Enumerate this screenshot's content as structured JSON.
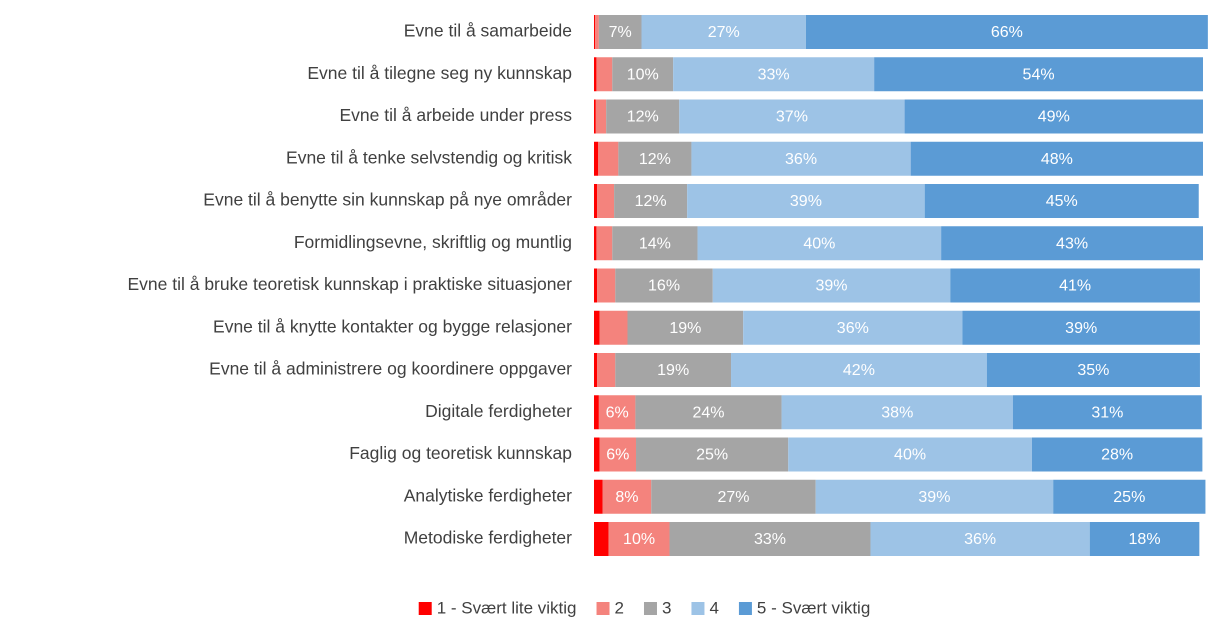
{
  "chart_data": {
    "type": "stacked-bar-horizontal",
    "categories": [
      "Evne til å samarbeide",
      "Evne til å tilegne seg ny kunnskap",
      "Evne til å arbeide under press",
      "Evne til å tenke selvstendig og kritisk",
      "Evne til å benytte sin kunnskap på nye områder",
      "Formidlingsevne, skriftlig og muntlig",
      "Evne til å bruke teoretisk kunnskap i praktiske situasjoner",
      "Evne til å knytte kontakter og bygge relasjoner",
      "Evne til å administrere og koordinere oppgaver",
      "Digitale ferdigheter",
      "Faglig og teoretisk kunnskap",
      "Analytiske ferdigheter",
      "Metodiske ferdigheter"
    ],
    "xlim": [
      0,
      100
    ],
    "legend": "bottom",
    "series": [
      {
        "name": "1 - Svært lite viktig",
        "color": "#ff0000",
        "values": [
          0.2,
          0.4,
          0.3,
          0.7,
          0.5,
          0.4,
          0.5,
          0.9,
          0.5,
          0.8,
          0.9,
          1.4,
          2.4
        ]
      },
      {
        "name": "2",
        "color": "#f4837d",
        "values": [
          0.6,
          2.6,
          1.7,
          3.3,
          2.8,
          2.6,
          3.0,
          4.6,
          3.0,
          6,
          6,
          8,
          10
        ],
        "value_labels": [
          null,
          null,
          null,
          null,
          null,
          null,
          null,
          null,
          null,
          "6%",
          "6%",
          "8%",
          "10%"
        ]
      },
      {
        "name": "3",
        "color": "#a5a5a5",
        "values": [
          7,
          10,
          12,
          12,
          12,
          14,
          16,
          19,
          19,
          24,
          25,
          27,
          33
        ],
        "value_labels": [
          "7%",
          "10%",
          "12%",
          "12%",
          "12%",
          "14%",
          "16%",
          "19%",
          "19%",
          "24%",
          "25%",
          "27%",
          "33%"
        ]
      },
      {
        "name": "4",
        "color": "#9dc3e6",
        "values": [
          27,
          33,
          37,
          36,
          39,
          40,
          39,
          36,
          42,
          38,
          40,
          39,
          36
        ],
        "value_labels": [
          "27%",
          "33%",
          "37%",
          "36%",
          "39%",
          "40%",
          "39%",
          "36%",
          "42%",
          "38%",
          "40%",
          "39%",
          "36%"
        ]
      },
      {
        "name": "5 - Svært viktig",
        "color": "#5b9bd5",
        "values": [
          66,
          54,
          49,
          48,
          45,
          43,
          41,
          39,
          35,
          31,
          28,
          25,
          18
        ],
        "value_labels": [
          "66%",
          "54%",
          "49%",
          "48%",
          "45%",
          "43%",
          "41%",
          "39%",
          "35%",
          "31%",
          "28%",
          "25%",
          "18%"
        ]
      }
    ]
  }
}
